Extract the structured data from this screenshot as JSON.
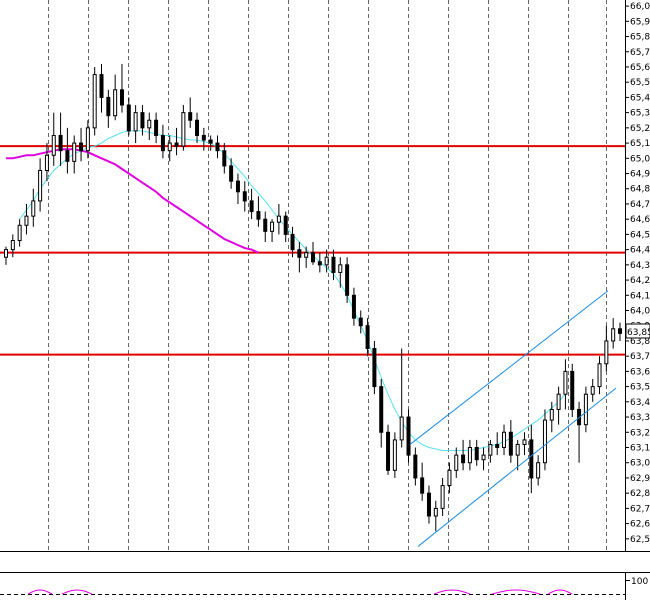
{
  "chart_data": {
    "type": "candlestick",
    "title": "",
    "xlabel": "",
    "ylabel": "",
    "ylim": [
      62.42,
      66.04
    ],
    "y_ticks": [
      "62,5",
      "62,6",
      "62,7",
      "62,8",
      "62,9",
      "63,0",
      "63,1",
      "63,2",
      "63,3",
      "63,4",
      "63,5",
      "63,6",
      "63,7",
      "63,8",
      "63,9",
      "64,0",
      "64,1",
      "64,2",
      "64,3",
      "64,4",
      "64,5",
      "64,6",
      "64,7",
      "64,8",
      "64,9",
      "65,0",
      "65,1",
      "65,2",
      "65,3",
      "65,4",
      "65,5",
      "65,6",
      "65,7",
      "65,8",
      "65,9",
      "66,0"
    ],
    "last_price": "63,85",
    "horizontal_levels": [
      65.08,
      64.38,
      63.71
    ],
    "candles": [
      [
        64.35,
        64.42,
        64.3,
        64.4
      ],
      [
        64.4,
        64.5,
        64.35,
        64.46
      ],
      [
        64.46,
        64.6,
        64.42,
        64.56
      ],
      [
        64.56,
        64.7,
        64.5,
        64.62
      ],
      [
        64.62,
        64.8,
        64.55,
        64.72
      ],
      [
        64.72,
        65.0,
        64.65,
        64.92
      ],
      [
        64.92,
        65.1,
        64.85,
        65.02
      ],
      [
        65.02,
        65.3,
        64.95,
        65.15
      ],
      [
        65.15,
        65.3,
        64.95,
        65.05
      ],
      [
        65.05,
        65.2,
        64.9,
        64.98
      ],
      [
        64.98,
        65.15,
        64.9,
        65.1
      ],
      [
        65.1,
        65.2,
        64.98,
        65.05
      ],
      [
        65.05,
        65.25,
        65.0,
        65.2
      ],
      [
        65.2,
        65.6,
        65.15,
        65.55
      ],
      [
        65.55,
        65.62,
        65.3,
        65.4
      ],
      [
        65.4,
        65.45,
        65.2,
        65.28
      ],
      [
        65.28,
        65.55,
        65.25,
        65.45
      ],
      [
        65.45,
        65.62,
        65.3,
        65.35
      ],
      [
        65.35,
        65.4,
        65.15,
        65.18
      ],
      [
        65.18,
        65.35,
        65.1,
        65.3
      ],
      [
        65.3,
        65.35,
        65.15,
        65.2
      ],
      [
        65.2,
        65.3,
        65.12,
        65.25
      ],
      [
        65.25,
        65.3,
        65.1,
        65.15
      ],
      [
        65.15,
        65.22,
        65.0,
        65.05
      ],
      [
        65.05,
        65.15,
        64.98,
        65.1
      ],
      [
        65.1,
        65.2,
        65.02,
        65.08
      ],
      [
        65.08,
        65.35,
        65.05,
        65.3
      ],
      [
        65.3,
        65.4,
        65.2,
        65.25
      ],
      [
        65.25,
        65.3,
        65.1,
        65.15
      ],
      [
        65.15,
        65.2,
        65.05,
        65.12
      ],
      [
        65.12,
        65.15,
        65.05,
        65.1
      ],
      [
        65.1,
        65.15,
        65.0,
        65.05
      ],
      [
        65.05,
        65.1,
        64.9,
        64.95
      ],
      [
        64.95,
        65.0,
        64.8,
        64.85
      ],
      [
        64.85,
        64.9,
        64.7,
        64.78
      ],
      [
        64.78,
        64.85,
        64.65,
        64.72
      ],
      [
        64.72,
        64.8,
        64.6,
        64.65
      ],
      [
        64.65,
        64.75,
        64.55,
        64.6
      ],
      [
        64.6,
        64.65,
        64.45,
        64.52
      ],
      [
        64.52,
        64.6,
        64.45,
        64.58
      ],
      [
        64.58,
        64.7,
        64.5,
        64.62
      ],
      [
        64.62,
        64.65,
        64.45,
        64.5
      ],
      [
        64.5,
        64.55,
        64.35,
        64.4
      ],
      [
        64.4,
        64.45,
        64.25,
        64.35
      ],
      [
        64.35,
        64.42,
        64.28,
        64.38
      ],
      [
        64.38,
        64.45,
        64.3,
        64.32
      ],
      [
        64.32,
        64.38,
        64.25,
        64.3
      ],
      [
        64.3,
        64.4,
        64.25,
        64.35
      ],
      [
        64.35,
        64.4,
        64.2,
        64.25
      ],
      [
        64.25,
        64.35,
        64.15,
        64.3
      ],
      [
        64.3,
        64.35,
        64.05,
        64.1
      ],
      [
        64.1,
        64.15,
        63.9,
        63.95
      ],
      [
        63.95,
        64.0,
        63.85,
        63.9
      ],
      [
        63.9,
        63.95,
        63.7,
        63.75
      ],
      [
        63.75,
        63.8,
        63.45,
        63.5
      ],
      [
        63.5,
        63.55,
        63.1,
        63.2
      ],
      [
        63.2,
        63.25,
        62.92,
        62.95
      ],
      [
        62.95,
        63.2,
        62.9,
        63.15
      ],
      [
        63.15,
        63.75,
        63.1,
        63.3
      ],
      [
        63.3,
        63.35,
        63.0,
        63.05
      ],
      [
        63.05,
        63.1,
        62.85,
        62.9
      ],
      [
        62.9,
        63.0,
        62.75,
        62.8
      ],
      [
        62.8,
        62.85,
        62.6,
        62.65
      ],
      [
        62.65,
        62.75,
        62.55,
        62.7
      ],
      [
        62.7,
        62.9,
        62.65,
        62.85
      ],
      [
        62.85,
        63.0,
        62.8,
        62.95
      ],
      [
        62.95,
        63.1,
        62.9,
        63.05
      ],
      [
        63.05,
        63.15,
        62.95,
        63.0
      ],
      [
        63.0,
        63.15,
        62.95,
        63.1
      ],
      [
        63.1,
        63.15,
        62.98,
        63.02
      ],
      [
        63.02,
        63.1,
        62.95,
        63.05
      ],
      [
        63.05,
        63.15,
        63.0,
        63.12
      ],
      [
        63.12,
        63.2,
        63.05,
        63.1
      ],
      [
        63.1,
        63.25,
        63.05,
        63.2
      ],
      [
        63.2,
        63.28,
        63.0,
        63.05
      ],
      [
        63.05,
        63.15,
        62.95,
        63.12
      ],
      [
        63.12,
        63.2,
        63.05,
        63.15
      ],
      [
        63.15,
        63.25,
        62.8,
        62.9
      ],
      [
        62.9,
        63.05,
        62.85,
        63.0
      ],
      [
        63.0,
        63.35,
        62.95,
        63.28
      ],
      [
        63.28,
        63.4,
        63.2,
        63.35
      ],
      [
        63.35,
        63.5,
        63.25,
        63.45
      ],
      [
        63.45,
        63.68,
        63.35,
        63.6
      ],
      [
        63.6,
        63.65,
        63.3,
        63.35
      ],
      [
        63.35,
        63.4,
        63.0,
        63.25
      ],
      [
        63.25,
        63.5,
        63.2,
        63.45
      ],
      [
        63.45,
        63.55,
        63.4,
        63.5
      ],
      [
        63.5,
        63.7,
        63.45,
        63.65
      ],
      [
        63.65,
        63.9,
        63.6,
        63.8
      ],
      [
        63.8,
        63.95,
        63.75,
        63.88
      ],
      [
        63.88,
        63.92,
        63.8,
        63.85
      ]
    ],
    "ma_short": [
      64.6,
      64.66,
      64.72,
      64.8,
      64.86,
      64.92,
      64.96,
      65.0,
      65.03,
      65.05,
      65.07,
      65.08,
      65.1,
      65.13,
      65.15,
      65.17,
      65.18,
      65.18,
      65.18,
      65.17,
      65.16,
      65.15,
      65.15,
      65.14,
      65.13,
      65.12,
      65.12,
      65.11,
      65.1,
      65.07,
      65.03,
      64.98,
      64.93,
      64.88,
      64.82,
      64.77,
      64.72,
      64.66,
      64.6,
      64.55,
      64.5,
      64.45,
      64.4,
      64.36,
      64.32,
      64.28,
      64.24,
      64.18,
      64.1,
      64.0,
      63.9,
      63.8,
      63.68,
      63.56,
      63.45,
      63.35,
      63.27,
      63.2,
      63.15,
      63.12,
      63.1,
      63.09,
      63.08,
      63.08,
      63.08,
      63.08,
      63.08,
      63.09,
      63.1,
      63.11,
      63.12,
      63.14,
      63.16,
      63.19,
      63.22,
      63.25,
      63.28,
      63.32,
      63.36,
      63.4,
      63.45
    ],
    "ma_long": [
      65.0,
      65.0,
      65.01,
      65.02,
      65.02,
      65.03,
      65.04,
      65.05,
      65.06,
      65.06,
      65.06,
      65.05,
      65.04,
      65.02,
      65.0,
      64.98,
      64.96,
      64.93,
      64.9,
      64.87,
      64.84,
      64.81,
      64.78,
      64.74,
      64.71,
      64.68,
      64.65,
      64.62,
      64.59,
      64.56,
      64.53,
      64.5,
      64.47,
      64.45,
      64.43,
      64.41,
      64.4,
      64.38
    ],
    "channel": {
      "upper": [
        [
          101,
          63.12
        ],
        [
          152,
          64.13
        ]
      ],
      "lower": [
        [
          101,
          62.45
        ],
        [
          152,
          63.49
        ]
      ]
    },
    "oscillator": {
      "label": "100"
    }
  }
}
